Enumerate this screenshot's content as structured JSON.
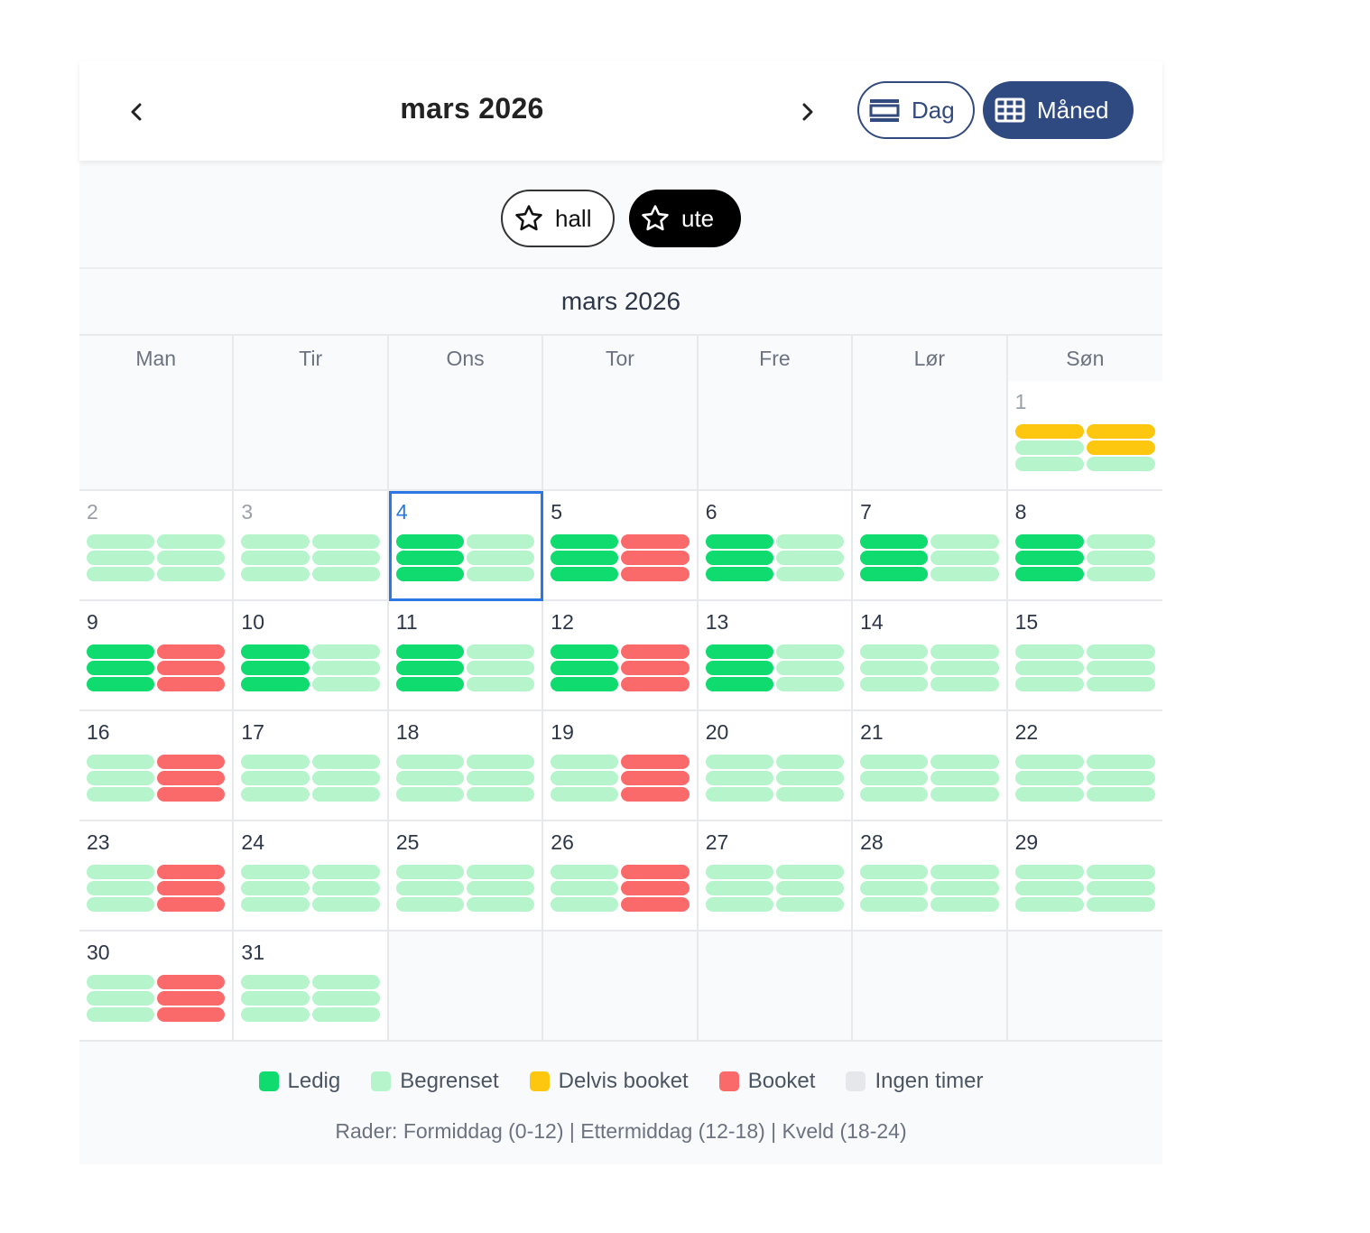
{
  "header": {
    "title": "mars 2026",
    "prev_icon": "chevron-left-icon",
    "next_icon": "chevron-right-icon"
  },
  "views": {
    "day_label": "Dag",
    "month_label": "Måned",
    "active": "month"
  },
  "filters": [
    {
      "label": "hall",
      "icon": "star-outline-icon",
      "selected": false
    },
    {
      "label": "ute",
      "icon": "star-outline-icon",
      "selected": true
    }
  ],
  "calendar": {
    "month_title": "mars 2026",
    "weekdays": [
      "Man",
      "Tir",
      "Ons",
      "Tor",
      "Fre",
      "Lør",
      "Søn"
    ],
    "lead_empty": 6,
    "today": 4,
    "past_days": [
      1,
      2,
      3
    ],
    "days": [
      {
        "day": "1",
        "slots": [
          [
            "delvis",
            "delvis"
          ],
          [
            "begr",
            "delvis"
          ],
          [
            "begr",
            "begr"
          ]
        ]
      },
      {
        "day": "2",
        "slots": [
          [
            "begr",
            "begr"
          ],
          [
            "begr",
            "begr"
          ],
          [
            "begr",
            "begr"
          ]
        ]
      },
      {
        "day": "3",
        "slots": [
          [
            "begr",
            "begr"
          ],
          [
            "begr",
            "begr"
          ],
          [
            "begr",
            "begr"
          ]
        ]
      },
      {
        "day": "4",
        "slots": [
          [
            "ledig",
            "begr"
          ],
          [
            "ledig",
            "begr"
          ],
          [
            "ledig",
            "begr"
          ]
        ]
      },
      {
        "day": "5",
        "slots": [
          [
            "ledig",
            "booket"
          ],
          [
            "ledig",
            "booket"
          ],
          [
            "ledig",
            "booket"
          ]
        ]
      },
      {
        "day": "6",
        "slots": [
          [
            "ledig",
            "begr"
          ],
          [
            "ledig",
            "begr"
          ],
          [
            "ledig",
            "begr"
          ]
        ]
      },
      {
        "day": "7",
        "slots": [
          [
            "ledig",
            "begr"
          ],
          [
            "ledig",
            "begr"
          ],
          [
            "ledig",
            "begr"
          ]
        ]
      },
      {
        "day": "8",
        "slots": [
          [
            "ledig",
            "begr"
          ],
          [
            "ledig",
            "begr"
          ],
          [
            "ledig",
            "begr"
          ]
        ]
      },
      {
        "day": "9",
        "slots": [
          [
            "ledig",
            "booket"
          ],
          [
            "ledig",
            "booket"
          ],
          [
            "ledig",
            "booket"
          ]
        ]
      },
      {
        "day": "10",
        "slots": [
          [
            "ledig",
            "begr"
          ],
          [
            "ledig",
            "begr"
          ],
          [
            "ledig",
            "begr"
          ]
        ]
      },
      {
        "day": "11",
        "slots": [
          [
            "ledig",
            "begr"
          ],
          [
            "ledig",
            "begr"
          ],
          [
            "ledig",
            "begr"
          ]
        ]
      },
      {
        "day": "12",
        "slots": [
          [
            "ledig",
            "booket"
          ],
          [
            "ledig",
            "booket"
          ],
          [
            "ledig",
            "booket"
          ]
        ]
      },
      {
        "day": "13",
        "slots": [
          [
            "ledig",
            "begr"
          ],
          [
            "ledig",
            "begr"
          ],
          [
            "ledig",
            "begr"
          ]
        ]
      },
      {
        "day": "14",
        "slots": [
          [
            "begr",
            "begr"
          ],
          [
            "begr",
            "begr"
          ],
          [
            "begr",
            "begr"
          ]
        ]
      },
      {
        "day": "15",
        "slots": [
          [
            "begr",
            "begr"
          ],
          [
            "begr",
            "begr"
          ],
          [
            "begr",
            "begr"
          ]
        ]
      },
      {
        "day": "16",
        "slots": [
          [
            "begr",
            "booket"
          ],
          [
            "begr",
            "booket"
          ],
          [
            "begr",
            "booket"
          ]
        ]
      },
      {
        "day": "17",
        "slots": [
          [
            "begr",
            "begr"
          ],
          [
            "begr",
            "begr"
          ],
          [
            "begr",
            "begr"
          ]
        ]
      },
      {
        "day": "18",
        "slots": [
          [
            "begr",
            "begr"
          ],
          [
            "begr",
            "begr"
          ],
          [
            "begr",
            "begr"
          ]
        ]
      },
      {
        "day": "19",
        "slots": [
          [
            "begr",
            "booket"
          ],
          [
            "begr",
            "booket"
          ],
          [
            "begr",
            "booket"
          ]
        ]
      },
      {
        "day": "20",
        "slots": [
          [
            "begr",
            "begr"
          ],
          [
            "begr",
            "begr"
          ],
          [
            "begr",
            "begr"
          ]
        ]
      },
      {
        "day": "21",
        "slots": [
          [
            "begr",
            "begr"
          ],
          [
            "begr",
            "begr"
          ],
          [
            "begr",
            "begr"
          ]
        ]
      },
      {
        "day": "22",
        "slots": [
          [
            "begr",
            "begr"
          ],
          [
            "begr",
            "begr"
          ],
          [
            "begr",
            "begr"
          ]
        ]
      },
      {
        "day": "23",
        "slots": [
          [
            "begr",
            "booket"
          ],
          [
            "begr",
            "booket"
          ],
          [
            "begr",
            "booket"
          ]
        ]
      },
      {
        "day": "24",
        "slots": [
          [
            "begr",
            "begr"
          ],
          [
            "begr",
            "begr"
          ],
          [
            "begr",
            "begr"
          ]
        ]
      },
      {
        "day": "25",
        "slots": [
          [
            "begr",
            "begr"
          ],
          [
            "begr",
            "begr"
          ],
          [
            "begr",
            "begr"
          ]
        ]
      },
      {
        "day": "26",
        "slots": [
          [
            "begr",
            "booket"
          ],
          [
            "begr",
            "booket"
          ],
          [
            "begr",
            "booket"
          ]
        ]
      },
      {
        "day": "27",
        "slots": [
          [
            "begr",
            "begr"
          ],
          [
            "begr",
            "begr"
          ],
          [
            "begr",
            "begr"
          ]
        ]
      },
      {
        "day": "28",
        "slots": [
          [
            "begr",
            "begr"
          ],
          [
            "begr",
            "begr"
          ],
          [
            "begr",
            "begr"
          ]
        ]
      },
      {
        "day": "29",
        "slots": [
          [
            "begr",
            "begr"
          ],
          [
            "begr",
            "begr"
          ],
          [
            "begr",
            "begr"
          ]
        ]
      },
      {
        "day": "30",
        "slots": [
          [
            "begr",
            "booket"
          ],
          [
            "begr",
            "booket"
          ],
          [
            "begr",
            "booket"
          ]
        ]
      },
      {
        "day": "31",
        "slots": [
          [
            "begr",
            "begr"
          ],
          [
            "begr",
            "begr"
          ],
          [
            "begr",
            "begr"
          ]
        ]
      }
    ],
    "trail_empty": 5
  },
  "legend": {
    "items": [
      {
        "key": "ledig",
        "label": "Ledig",
        "color": "#0fdb6f"
      },
      {
        "key": "begr",
        "label": "Begrenset",
        "color": "#b6f5cc"
      },
      {
        "key": "delvis",
        "label": "Delvis booket",
        "color": "#fcc70e"
      },
      {
        "key": "booket",
        "label": "Booket",
        "color": "#fb6a6a"
      },
      {
        "key": "ingen",
        "label": "Ingen timer",
        "color": "#e5e7eb"
      }
    ],
    "note": "Rader: Formiddag (0-12) | Ettermiddag (12-18) | Kveld (18-24)"
  },
  "colors": {
    "accent": "#2f4a80",
    "today_outline": "#2b78e4"
  }
}
